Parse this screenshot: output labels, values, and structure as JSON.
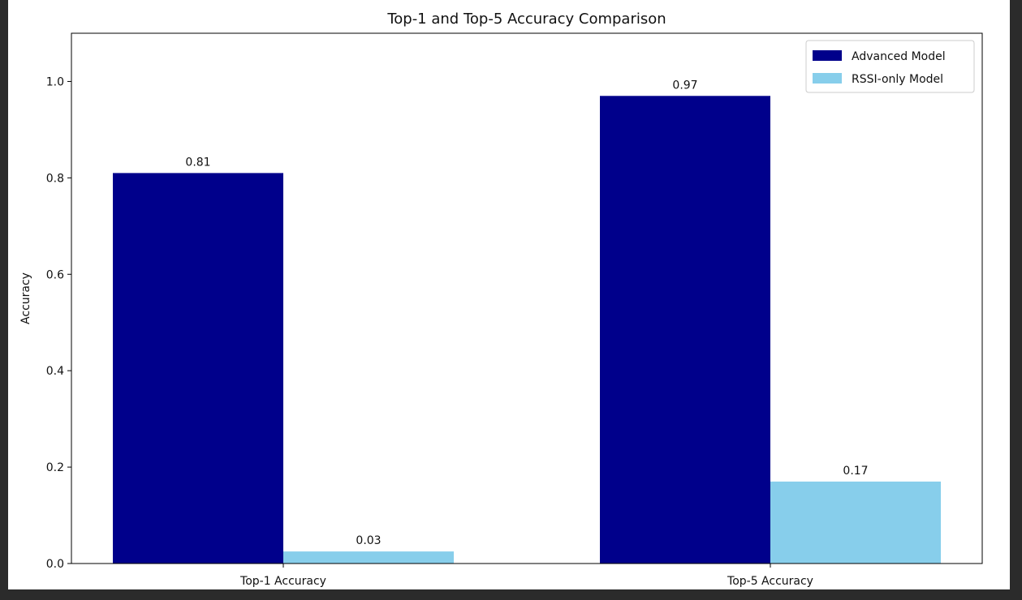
{
  "chart_data": {
    "type": "bar",
    "title": "Top-1 and Top-5 Accuracy Comparison",
    "xlabel": "",
    "ylabel": "Accuracy",
    "categories": [
      "Top-1 Accuracy",
      "Top-5 Accuracy"
    ],
    "series": [
      {
        "name": "Advanced Model",
        "color": "#00008b",
        "values": [
          0.81,
          0.97
        ],
        "labels": [
          "0.81",
          "0.97"
        ]
      },
      {
        "name": "RSSI-only Model",
        "color": "#87ceeb",
        "values": [
          0.025,
          0.17
        ],
        "labels": [
          "0.03",
          "0.17"
        ]
      }
    ],
    "ylim": [
      0,
      1.1
    ],
    "yticks": [
      0.0,
      0.2,
      0.4,
      0.6,
      0.8,
      1.0
    ],
    "ytick_labels": [
      "0.0",
      "0.2",
      "0.4",
      "0.6",
      "0.8",
      "1.0"
    ],
    "grid": false,
    "legend_position": "top-right"
  }
}
